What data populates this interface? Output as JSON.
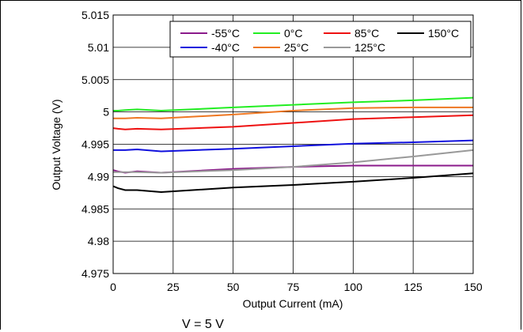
{
  "chart_data": {
    "type": "line",
    "xlabel": "Output Current (mA)",
    "ylabel": "Output Voltage (V)",
    "xlim": [
      0,
      150
    ],
    "ylim": [
      4.975,
      5.015
    ],
    "x_ticks": [
      "0",
      "25",
      "50",
      "75",
      "100",
      "125",
      "150"
    ],
    "y_ticks": [
      "4.975",
      "4.98",
      "4.985",
      "4.99",
      "4.995",
      "5",
      "5.005",
      "5.01",
      "5.015"
    ],
    "grid": true,
    "legend_position": "top-right",
    "series": [
      {
        "name": "-55°C",
        "color": "#8b1a8b",
        "x": [
          0,
          2,
          5,
          10,
          20,
          50,
          75,
          100,
          125,
          150
        ],
        "y": [
          4.991,
          4.9908,
          4.9906,
          4.9908,
          4.9906,
          4.9912,
          4.9915,
          4.9917,
          4.9917,
          4.9917
        ]
      },
      {
        "name": "-40°C",
        "color": "#1010dd",
        "x": [
          0,
          2,
          5,
          10,
          20,
          50,
          75,
          100,
          125,
          150
        ],
        "y": [
          4.9941,
          4.9941,
          4.9941,
          4.9942,
          4.9939,
          4.9943,
          4.9947,
          4.9951,
          4.9953,
          4.9956
        ]
      },
      {
        "name": "0°C",
        "color": "#22ee22",
        "x": [
          0,
          2,
          5,
          10,
          20,
          50,
          75,
          100,
          125,
          150
        ],
        "y": [
          5.0002,
          5.0002,
          5.0003,
          5.0004,
          5.0002,
          5.0007,
          5.0011,
          5.0015,
          5.0018,
          5.0022
        ]
      },
      {
        "name": "25°C",
        "color": "#ee7722",
        "x": [
          0,
          2,
          5,
          10,
          20,
          50,
          75,
          100,
          125,
          150
        ],
        "y": [
          4.999,
          4.999,
          4.999,
          4.9991,
          4.999,
          4.9996,
          5.0002,
          5.0006,
          5.0007,
          5.0007
        ]
      },
      {
        "name": "85°C",
        "color": "#ee1111",
        "x": [
          0,
          2,
          5,
          10,
          20,
          50,
          75,
          100,
          125,
          150
        ],
        "y": [
          4.9975,
          4.9974,
          4.9973,
          4.9974,
          4.9973,
          4.9977,
          4.9983,
          4.9989,
          4.9992,
          4.9995
        ]
      },
      {
        "name": "125°C",
        "color": "#999999",
        "x": [
          0,
          2,
          5,
          10,
          20,
          50,
          75,
          100,
          125,
          150
        ],
        "y": [
          4.9907,
          4.9907,
          4.9907,
          4.9907,
          4.9906,
          4.991,
          4.9915,
          4.9922,
          4.9931,
          4.9941
        ]
      },
      {
        "name": "150°C",
        "color": "#000000",
        "x": [
          0,
          2,
          5,
          10,
          20,
          50,
          75,
          100,
          125,
          150
        ],
        "y": [
          4.9885,
          4.9882,
          4.9879,
          4.9879,
          4.9876,
          4.9883,
          4.9887,
          4.9892,
          4.9898,
          4.9905
        ]
      }
    ]
  },
  "caption": {
    "text": "V      = 5 V"
  }
}
